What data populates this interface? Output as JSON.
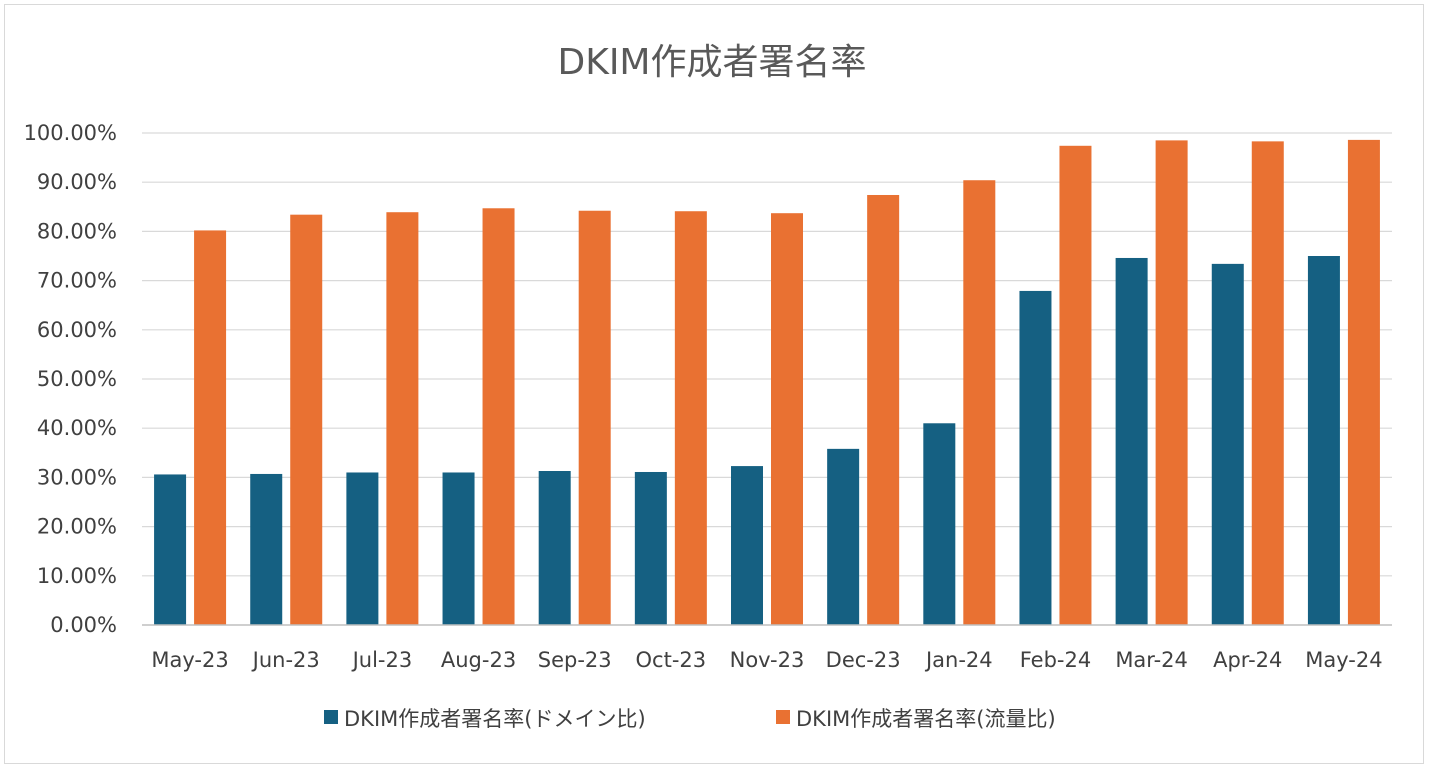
{
  "chart_data": {
    "type": "bar",
    "title": "DKIM作成者署名率",
    "categories": [
      "May-23",
      "Jun-23",
      "Jul-23",
      "Aug-23",
      "Sep-23",
      "Oct-23",
      "Nov-23",
      "Dec-23",
      "Jan-24",
      "Feb-24",
      "Mar-24",
      "Apr-24",
      "May-24"
    ],
    "series": [
      {
        "name": "DKIM作成者署名率(ドメイン比)",
        "color": "#156082",
        "values": [
          30.6,
          30.7,
          31.0,
          31.0,
          31.3,
          31.1,
          32.3,
          35.8,
          41.0,
          67.9,
          74.6,
          73.4,
          75.0
        ]
      },
      {
        "name": "DKIM作成者署名率(流量比)",
        "color": "#E97132",
        "values": [
          80.2,
          83.4,
          83.9,
          84.7,
          84.2,
          84.1,
          83.7,
          87.4,
          90.4,
          97.4,
          98.5,
          98.3,
          98.6
        ]
      }
    ],
    "ylim": [
      0,
      100
    ],
    "yticks": [
      "0.00%",
      "10.00%",
      "20.00%",
      "30.00%",
      "40.00%",
      "50.00%",
      "60.00%",
      "70.00%",
      "80.00%",
      "90.00%",
      "100.00%"
    ],
    "xlabel": "",
    "ylabel": "",
    "grid": true,
    "legend": "bottom"
  }
}
